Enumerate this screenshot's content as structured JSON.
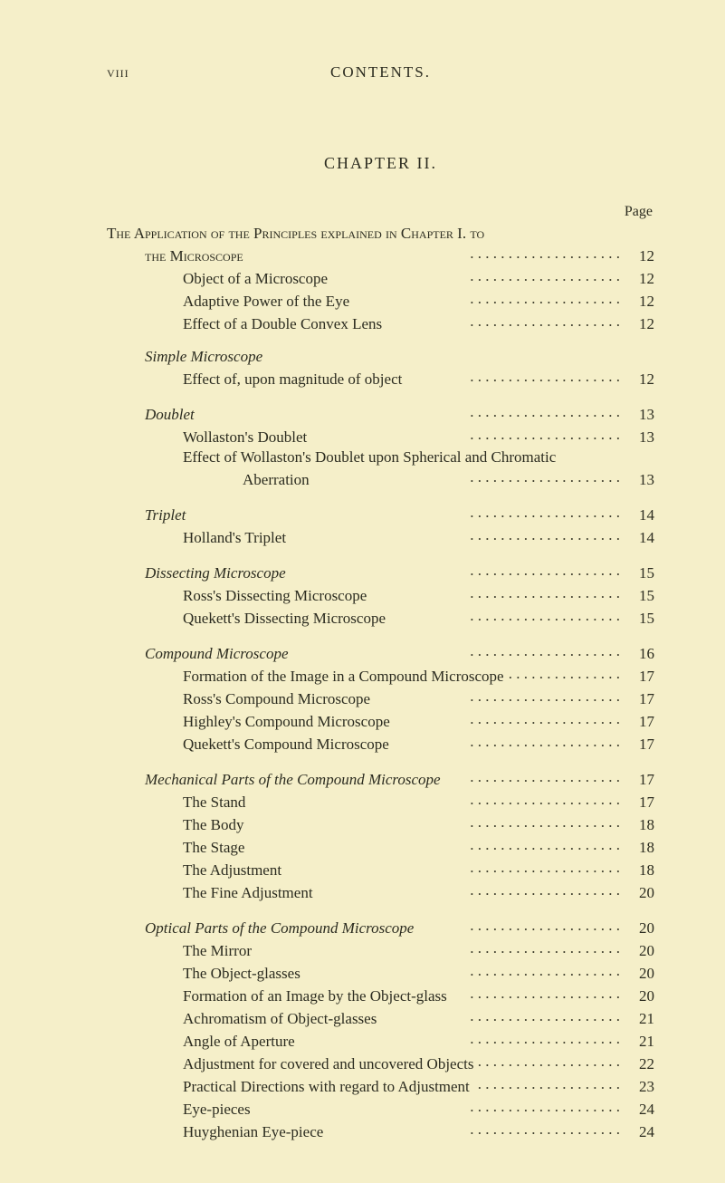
{
  "header": {
    "folio": "viii",
    "running": "CONTENTS."
  },
  "chapter_title": "CHAPTER II.",
  "page_label": "Page",
  "section_title_parts": {
    "line1_sc": "The Application of the Principles explained in Chapter I. to",
    "line2_sc": "the Microscope"
  },
  "entries": [
    {
      "indent": 1,
      "label": "the Microscope",
      "page": "12",
      "smallcaps": true,
      "heading_tail": true
    },
    {
      "indent": 2,
      "label": "Object of a Microscope",
      "page": "12"
    },
    {
      "indent": 2,
      "label": "Adaptive Power of the Eye",
      "page": "12"
    },
    {
      "indent": 2,
      "label": "Effect of a Double Convex Lens",
      "page": "12"
    },
    {
      "gap": true
    },
    {
      "indent": 1,
      "label": "Simple Microscope",
      "italic": true,
      "nopage": true
    },
    {
      "indent": 2,
      "label": "Effect of, upon magnitude of object",
      "page": "12"
    },
    {
      "gap": true
    },
    {
      "indent": 1,
      "label": "Doublet",
      "italic": true,
      "page": "13"
    },
    {
      "indent": 2,
      "label": "Wollaston's Doublet",
      "page": "13"
    },
    {
      "indent": 2,
      "label": "Effect of Wollaston's Doublet upon Spherical and Chromatic",
      "nopage": true
    },
    {
      "indent": 3,
      "label": "Aberration",
      "page": "13"
    },
    {
      "gap": true
    },
    {
      "indent": 1,
      "label": "Triplet",
      "italic": true,
      "page": "14"
    },
    {
      "indent": 2,
      "label": "Holland's Triplet",
      "page": "14"
    },
    {
      "gap": true
    },
    {
      "indent": 1,
      "label": "Dissecting Microscope",
      "italic": true,
      "page": "15"
    },
    {
      "indent": 2,
      "label": "Ross's Dissecting Microscope",
      "page": "15"
    },
    {
      "indent": 2,
      "label": "Quekett's Dissecting Microscope",
      "page": "15"
    },
    {
      "gap": true
    },
    {
      "indent": 1,
      "label": "Compound Microscope",
      "italic": true,
      "page": "16"
    },
    {
      "indent": 2,
      "label": "Formation of the Image in a Compound Microscope",
      "page": "17"
    },
    {
      "indent": 2,
      "label": "Ross's Compound Microscope",
      "page": "17"
    },
    {
      "indent": 2,
      "label": "Highley's Compound Microscope",
      "page": "17"
    },
    {
      "indent": 2,
      "label": "Quekett's Compound Microscope",
      "page": "17"
    },
    {
      "gap": true
    },
    {
      "indent": 1,
      "label": "Mechanical Parts of the Compound Microscope",
      "italic": true,
      "page": "17"
    },
    {
      "indent": 2,
      "label": "The Stand",
      "page": "17"
    },
    {
      "indent": 2,
      "label": "The Body",
      "page": "18"
    },
    {
      "indent": 2,
      "label": "The Stage",
      "page": "18"
    },
    {
      "indent": 2,
      "label": "The Adjustment",
      "page": "18"
    },
    {
      "indent": 2,
      "label": "The Fine Adjustment",
      "page": "20"
    },
    {
      "gap": true
    },
    {
      "indent": 1,
      "label": "Optical Parts of the Compound Microscope",
      "italic": true,
      "page": "20"
    },
    {
      "indent": 2,
      "label": "The Mirror",
      "page": "20"
    },
    {
      "indent": 2,
      "label": "The Object-glasses",
      "page": "20"
    },
    {
      "indent": 2,
      "label": "Formation of an Image by the Object-glass",
      "page": "20"
    },
    {
      "indent": 2,
      "label": "Achromatism of Object-glasses",
      "page": "21"
    },
    {
      "indent": 2,
      "label": "Angle of Aperture",
      "page": "21"
    },
    {
      "indent": 2,
      "label": "Adjustment for covered and uncovered Objects",
      "page": "22"
    },
    {
      "indent": 2,
      "label": "Practical Directions with regard to Adjustment",
      "page": "23"
    },
    {
      "indent": 2,
      "label": "Eye-pieces",
      "page": "24"
    },
    {
      "indent": 2,
      "label": "Huyghenian Eye-piece",
      "page": "24"
    }
  ]
}
